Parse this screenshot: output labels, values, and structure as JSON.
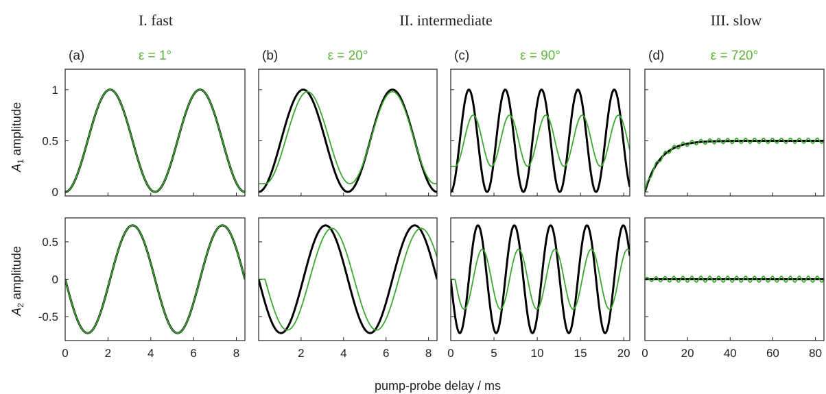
{
  "figure": {
    "regime_titles": [
      "I. fast",
      "II. intermediate",
      "III. slow"
    ],
    "xlabel": "pump-probe delay / ms",
    "row_labels": [
      {
        "var": "A",
        "sub": "1",
        "rest": " amplitude"
      },
      {
        "var": "A",
        "sub": "2",
        "rest": " amplitude"
      }
    ],
    "colors": {
      "black_series": "#000000",
      "green_series": "#3aa82e",
      "green_text": "#5cb33a"
    }
  },
  "chart_data": [
    {
      "type": "line",
      "panel": "(a)",
      "epsilon_label": "ε = 1°",
      "ylabel": "A1 amplitude",
      "xlim": [
        0,
        8.4
      ],
      "ylim": [
        -0.04,
        1.2
      ],
      "xticks": [
        0,
        2,
        4,
        6,
        8
      ],
      "yticks": [
        0,
        0.5,
        1
      ],
      "ytick_labels": [
        "0",
        "0.5",
        "1"
      ],
      "series": [
        {
          "color": "black",
          "model": "A1",
          "period": 4.2,
          "offset": 0.5,
          "amp": 0.5
        },
        {
          "color": "green",
          "model": "A1",
          "period": 4.2,
          "offset": 0.5,
          "amp": 0.5
        }
      ]
    },
    {
      "type": "line",
      "panel": "(b)",
      "epsilon_label": "ε = 20°",
      "xlim": [
        0,
        8.4
      ],
      "ylim": [
        -0.04,
        1.2
      ],
      "xticks": [
        0,
        2,
        4,
        6,
        8
      ],
      "yticks": [
        0,
        0.5,
        1
      ],
      "series": [
        {
          "color": "black",
          "model": "A1",
          "period": 4.2,
          "offset": 0.5,
          "amp": 0.5
        },
        {
          "color": "green",
          "model": "A1",
          "period": 4.0,
          "offset": 0.53,
          "amp": 0.45,
          "lag": 0.3
        }
      ]
    },
    {
      "type": "line",
      "panel": "(c)",
      "epsilon_label": "ε = 90°",
      "xlim": [
        0,
        20.7
      ],
      "ylim": [
        -0.04,
        1.2
      ],
      "xticks": [
        0,
        5,
        10,
        15,
        20
      ],
      "yticks": [
        0,
        0.5,
        1
      ],
      "series": [
        {
          "color": "black",
          "model": "A1",
          "period": 4.2,
          "offset": 0.5,
          "amp": 0.5
        },
        {
          "color": "green",
          "model": "A1",
          "period": 4.2,
          "offset": 0.5,
          "amp": 0.25,
          "lag": 0.5
        }
      ]
    },
    {
      "type": "line",
      "panel": "(d)",
      "epsilon_label": "ε = 720°",
      "xlim": [
        0,
        84
      ],
      "ylim": [
        -0.04,
        1.2
      ],
      "xticks": [
        0,
        20,
        40,
        60,
        80
      ],
      "yticks": [
        0,
        0.5,
        1
      ],
      "series": [
        {
          "color": "black",
          "model": "relax",
          "plateau": 0.5,
          "tau": 7
        },
        {
          "color": "green",
          "model": "relax",
          "plateau": 0.5,
          "tau": 7,
          "ripple": 0.025,
          "ripple_period": 4.2
        }
      ]
    },
    {
      "type": "line",
      "panel": "(a)",
      "ylabel": "A2 amplitude",
      "xlim": [
        0,
        8.4
      ],
      "ylim": [
        -0.82,
        0.82
      ],
      "xticks": [
        0,
        2,
        4,
        6,
        8
      ],
      "xtick_labels": [
        "0",
        "2",
        "4",
        "6",
        "8"
      ],
      "yticks": [
        -0.5,
        0,
        0.5
      ],
      "ytick_labels": [
        "-0.5",
        "0",
        "0.5"
      ],
      "series": [
        {
          "color": "black",
          "model": "A2",
          "period": 4.2,
          "amp": 0.72
        },
        {
          "color": "green",
          "model": "A2",
          "period": 4.2,
          "amp": 0.72
        }
      ]
    },
    {
      "type": "line",
      "panel": "(b)",
      "xlim": [
        0,
        8.4
      ],
      "ylim": [
        -0.82,
        0.82
      ],
      "xticks": [
        0,
        2,
        4,
        6,
        8
      ],
      "xtick_labels": [
        "2",
        "4",
        "6",
        "8"
      ],
      "yticks": [
        -0.5,
        0,
        0.5
      ],
      "series": [
        {
          "color": "black",
          "model": "A2",
          "period": 4.2,
          "amp": 0.72
        },
        {
          "color": "green",
          "model": "A2",
          "period": 4.2,
          "amp": 0.68,
          "lag": 0.3
        }
      ]
    },
    {
      "type": "line",
      "panel": "(c)",
      "xlim": [
        0,
        20.7
      ],
      "ylim": [
        -0.82,
        0.82
      ],
      "xticks": [
        0,
        5,
        10,
        15,
        20
      ],
      "xtick_labels": [
        "0",
        "5",
        "10",
        "15",
        "20"
      ],
      "yticks": [
        -0.5,
        0,
        0.5
      ],
      "series": [
        {
          "color": "black",
          "model": "A2",
          "period": 4.2,
          "amp": 0.72
        },
        {
          "color": "green",
          "model": "A2",
          "period": 4.2,
          "amp": 0.4,
          "lag": 0.5
        }
      ]
    },
    {
      "type": "line",
      "panel": "(d)",
      "xlim": [
        0,
        84
      ],
      "ylim": [
        -0.82,
        0.82
      ],
      "xticks": [
        0,
        20,
        40,
        60,
        80
      ],
      "xtick_labels": [
        "0",
        "20",
        "40",
        "60",
        "80"
      ],
      "yticks": [
        -0.5,
        0,
        0.5
      ],
      "series": [
        {
          "color": "black",
          "model": "flat",
          "value": 0
        },
        {
          "color": "green",
          "model": "flat",
          "value": 0,
          "ripple": 0.04,
          "ripple_period": 4.2
        }
      ]
    }
  ]
}
